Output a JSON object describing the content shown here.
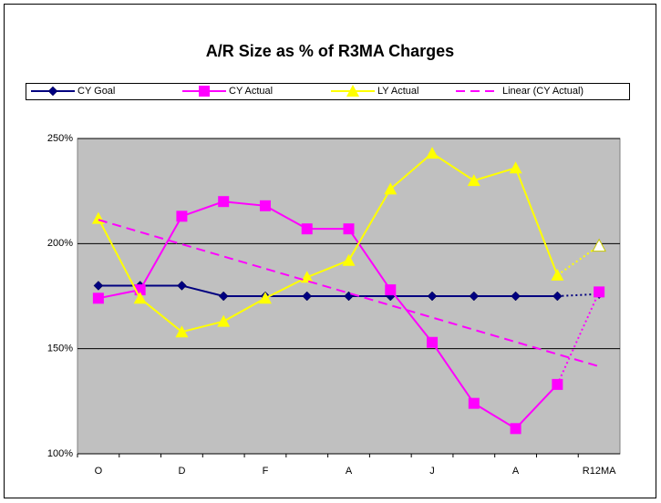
{
  "chart_data": {
    "type": "line",
    "title": "A/R Size as % of R3MA Charges",
    "categories": [
      "O",
      null,
      "D",
      null,
      "F",
      null,
      "A",
      null,
      "J",
      null,
      "A",
      null,
      "R12MA"
    ],
    "series": [
      {
        "name": "CY Goal",
        "color": "#000080",
        "marker": "diamond",
        "values": [
          180,
          180,
          180,
          175,
          175,
          175,
          175,
          175,
          175,
          175,
          175,
          175,
          176
        ]
      },
      {
        "name": "CY Actual",
        "color": "#ff00ff",
        "marker": "square",
        "values": [
          174,
          178,
          213,
          220,
          218,
          207,
          207,
          178,
          153,
          124,
          112,
          133,
          177
        ]
      },
      {
        "name": "LY Actual",
        "color": "#ffff00",
        "marker": "triangle",
        "values": [
          212,
          174,
          158,
          163,
          174,
          184,
          192,
          226,
          243,
          230,
          236,
          185,
          199
        ]
      },
      {
        "name": "Linear (CY Actual)",
        "color": "#ff00ff",
        "trendline": true
      }
    ],
    "ylim": [
      100,
      250
    ],
    "yticks": [
      {
        "value": 100,
        "label": "100%"
      },
      {
        "value": 150,
        "label": "150%"
      },
      {
        "value": 200,
        "label": "200%"
      },
      {
        "value": 250,
        "label": "250%"
      }
    ],
    "grid": true
  }
}
